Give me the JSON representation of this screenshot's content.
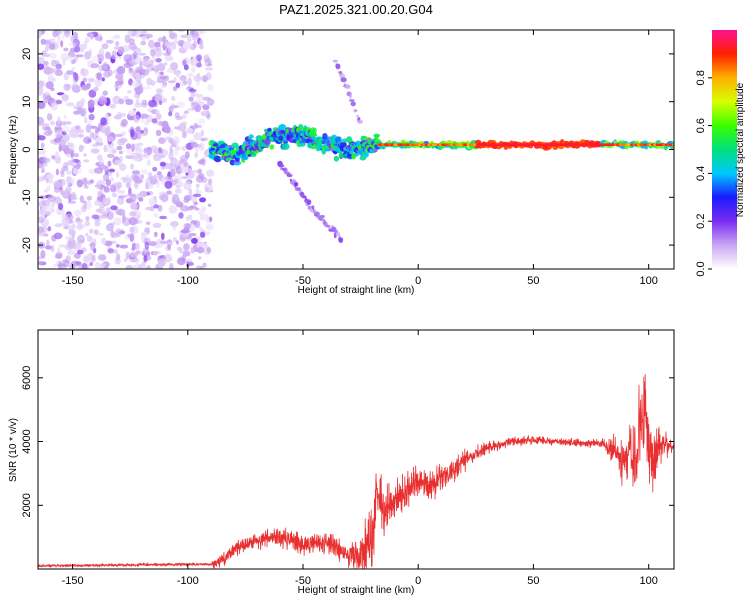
{
  "title": "PAZ1.2025.321.00.20.G04",
  "chart_data": [
    {
      "type": "heatmap",
      "name": "spectrogram",
      "xlabel": "Height of straight line (km)",
      "ylabel": "Frequency (Hz)",
      "xlim": [
        -165,
        111
      ],
      "ylim": [
        -25,
        25
      ],
      "xticks": [
        -150,
        -100,
        -50,
        0,
        50,
        100
      ],
      "yticks": [
        -20,
        -10,
        0,
        10,
        20
      ],
      "colorbar": {
        "label": "Normalized spectral amplitude",
        "range": [
          0,
          1
        ],
        "ticks": [
          "0.0",
          "0.2",
          "0.4",
          "0.6",
          "0.8"
        ],
        "colors": [
          "#ffffff",
          "#c9a6f2",
          "#7a2cf0",
          "#1a1aff",
          "#00c8ff",
          "#00e07a",
          "#3aff00",
          "#d8ff00",
          "#ffb000",
          "#ff2000",
          "#ff1090"
        ]
      },
      "features": {
        "noise_region_x": [
          -165,
          -90
        ],
        "main_trace": [
          {
            "x": -90,
            "y": 0
          },
          {
            "x": -80,
            "y": -1
          },
          {
            "x": -70,
            "y": 1
          },
          {
            "x": -60,
            "y": 3
          },
          {
            "x": -50,
            "y": 3
          },
          {
            "x": -40,
            "y": 1
          },
          {
            "x": -30,
            "y": 0
          },
          {
            "x": -17,
            "y": 1
          },
          {
            "x": 0,
            "y": 1
          },
          {
            "x": 50,
            "y": 1
          },
          {
            "x": 90,
            "y": 1
          },
          {
            "x": 111,
            "y": 1
          }
        ],
        "upper_branch": [
          {
            "x": -36,
            "y": 18
          },
          {
            "x": -30,
            "y": 12
          },
          {
            "x": -25,
            "y": 5
          }
        ],
        "lower_branch": [
          {
            "x": -60,
            "y": -3
          },
          {
            "x": -45,
            "y": -13
          },
          {
            "x": -33,
            "y": -19
          }
        ]
      }
    },
    {
      "type": "line",
      "name": "snr",
      "xlabel": "Height of straight line (km)",
      "ylabel": "SNR (10 * v/v)",
      "xlim": [
        -165,
        111
      ],
      "ylim": [
        0,
        7500
      ],
      "xticks": [
        -150,
        -100,
        -50,
        0,
        50,
        100
      ],
      "yticks": [
        2000,
        4000,
        6000
      ],
      "color": "#e83030",
      "series": [
        {
          "name": "SNR",
          "x": [
            -165,
            -90,
            -85,
            -80,
            -70,
            -60,
            -50,
            -40,
            -30,
            -25,
            -20,
            -18,
            -15,
            -10,
            -5,
            0,
            5,
            10,
            15,
            20,
            25,
            30,
            40,
            50,
            60,
            70,
            80,
            85,
            90,
            95,
            98,
            100,
            102,
            105,
            111
          ],
          "y": [
            100,
            150,
            250,
            650,
            900,
            1000,
            800,
            850,
            400,
            500,
            900,
            2300,
            1900,
            2100,
            2400,
            2700,
            2600,
            2900,
            3100,
            3400,
            3600,
            3800,
            4000,
            4050,
            4000,
            3950,
            3950,
            3700,
            3300,
            3600,
            5200,
            3800,
            3200,
            4000,
            3850
          ]
        }
      ],
      "noise_amplitude": [
        {
          "x": -90,
          "a": 120
        },
        {
          "x": -85,
          "a": 350
        },
        {
          "x": -30,
          "a": 500
        },
        {
          "x": -20,
          "a": 1400
        },
        {
          "x": -10,
          "a": 900
        },
        {
          "x": 5,
          "a": 700
        },
        {
          "x": 20,
          "a": 450
        },
        {
          "x": 35,
          "a": 200
        },
        {
          "x": 80,
          "a": 180
        },
        {
          "x": 88,
          "a": 900
        },
        {
          "x": 97,
          "a": 2200
        },
        {
          "x": 104,
          "a": 1100
        },
        {
          "x": 111,
          "a": 250
        }
      ]
    }
  ]
}
